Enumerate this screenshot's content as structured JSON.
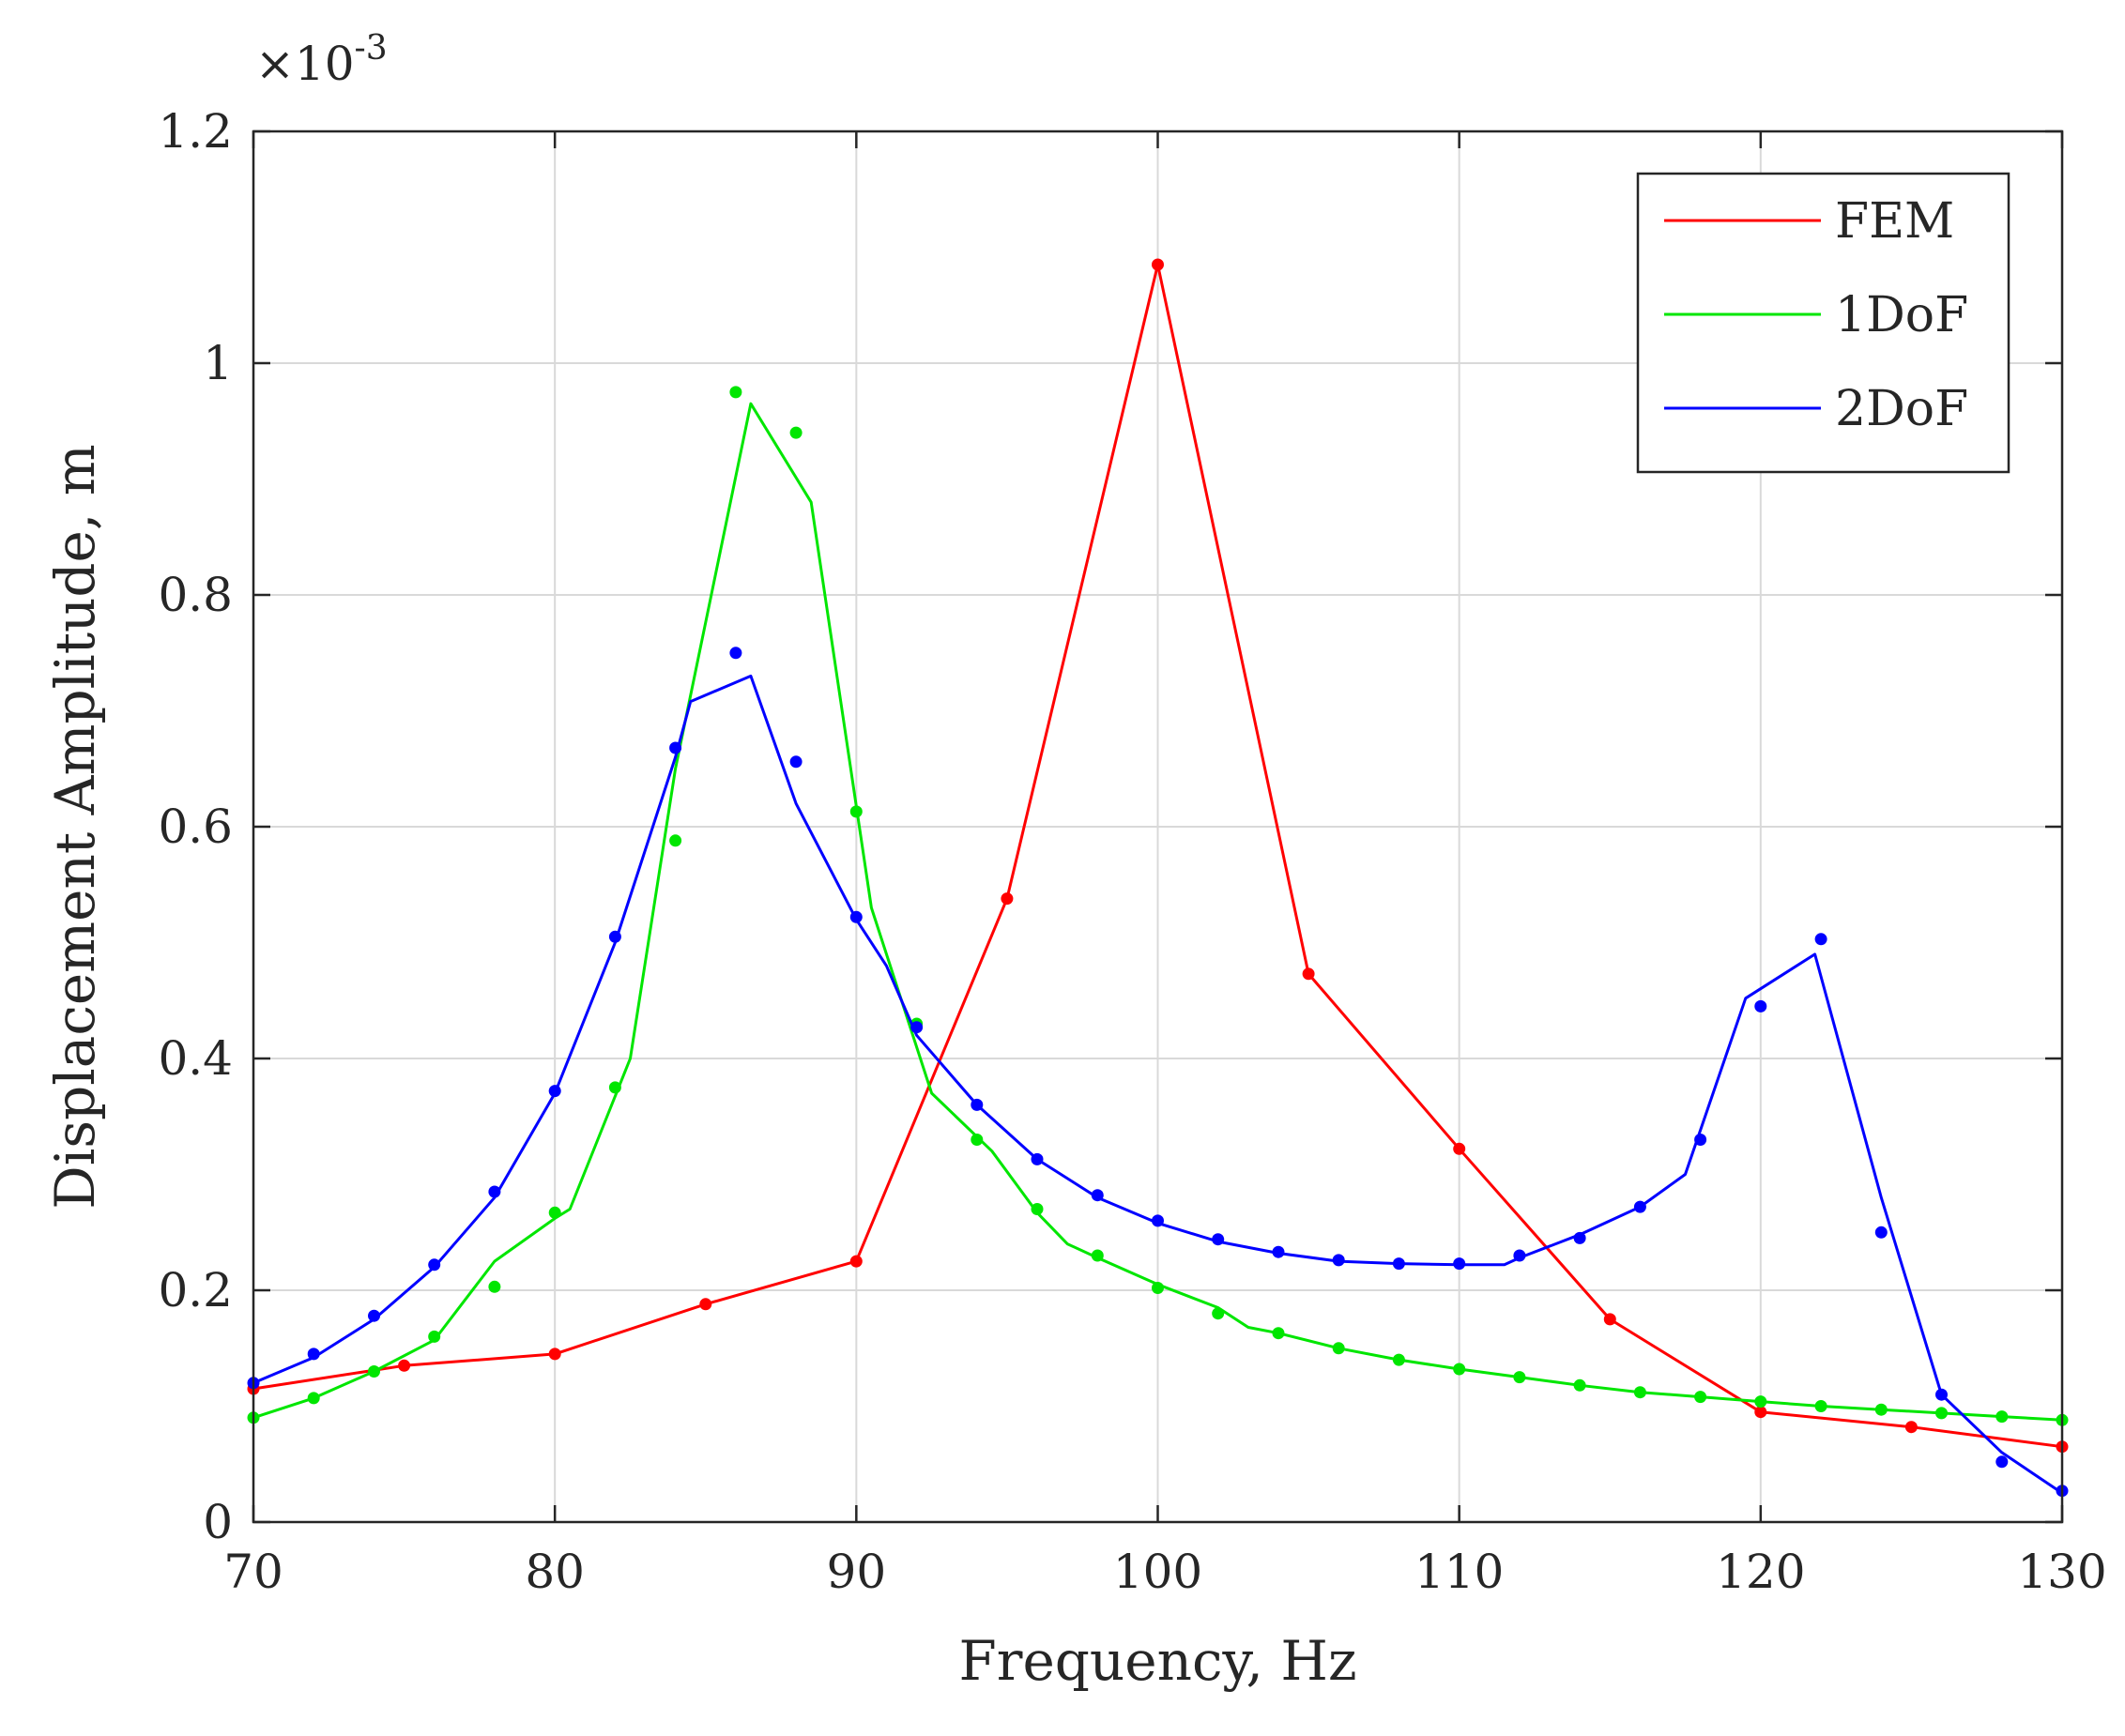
{
  "chart_data": {
    "type": "line",
    "title": "",
    "xlabel": "Frequency, Hz",
    "ylabel": "Displacement Amplitude, m",
    "xlim": [
      70,
      130
    ],
    "ylim": [
      0,
      1.2
    ],
    "y_exponent_label": "×10",
    "y_exponent_power": "-3",
    "xticks": [
      70,
      80,
      90,
      100,
      110,
      120,
      130
    ],
    "xtick_labels": [
      "70",
      "80",
      "90",
      "100",
      "110",
      "120",
      "130"
    ],
    "yticks": [
      0,
      0.2,
      0.4,
      0.6,
      0.8,
      1,
      1.2
    ],
    "ytick_labels": [
      "0",
      "0.2",
      "0.4",
      "0.6",
      "0.8",
      "1",
      "1.2"
    ],
    "grid": true,
    "legend_position": "top-right",
    "series": [
      {
        "name": "FEM",
        "color": "#ff0000",
        "line": {
          "x": [
            70,
            75,
            80,
            85,
            90,
            95,
            100,
            105,
            110,
            115,
            120,
            125,
            130
          ],
          "y": [
            0.115,
            0.135,
            0.145,
            0.188,
            0.225,
            0.538,
            1.085,
            0.473,
            0.322,
            0.175,
            0.095,
            0.082,
            0.065
          ]
        },
        "markers": {
          "x": [
            70,
            75,
            80,
            85,
            90,
            95,
            100,
            105,
            110,
            115,
            120,
            125,
            130
          ],
          "y": [
            0.115,
            0.135,
            0.145,
            0.188,
            0.225,
            0.538,
            1.085,
            0.473,
            0.322,
            0.175,
            0.095,
            0.082,
            0.065
          ]
        }
      },
      {
        "name": "1DoF",
        "color": "#00e600",
        "line": {
          "x": [
            70,
            72,
            74,
            76,
            78,
            80,
            80.5,
            82.5,
            84,
            86.5,
            88.5,
            90.5,
            92.5,
            94.5,
            96,
            97,
            98,
            100,
            102,
            103,
            104,
            106,
            108,
            110,
            112,
            114,
            116,
            118,
            120,
            122,
            124,
            126,
            128,
            130
          ],
          "y": [
            0.09,
            0.107,
            0.13,
            0.157,
            0.225,
            0.262,
            0.27,
            0.4,
            0.65,
            0.965,
            0.88,
            0.53,
            0.37,
            0.32,
            0.267,
            0.24,
            0.228,
            0.205,
            0.185,
            0.168,
            0.163,
            0.15,
            0.14,
            0.132,
            0.125,
            0.118,
            0.112,
            0.108,
            0.104,
            0.1,
            0.097,
            0.094,
            0.091,
            0.088
          ]
        },
        "markers": {
          "x": [
            70,
            72,
            74,
            76,
            78,
            80,
            82,
            84,
            86,
            88,
            90,
            92,
            94,
            96,
            98,
            100,
            102,
            104,
            106,
            108,
            110,
            112,
            114,
            116,
            118,
            120,
            122,
            124,
            126,
            128,
            130
          ],
          "y": [
            0.09,
            0.107,
            0.13,
            0.16,
            0.203,
            0.267,
            0.375,
            0.588,
            0.975,
            0.94,
            0.613,
            0.43,
            0.33,
            0.27,
            0.23,
            0.202,
            0.18,
            0.163,
            0.15,
            0.14,
            0.132,
            0.125,
            0.118,
            0.112,
            0.108,
            0.104,
            0.1,
            0.097,
            0.094,
            0.091,
            0.088
          ]
        }
      },
      {
        "name": "2DoF",
        "color": "#0000ff",
        "line": {
          "x": [
            70,
            72,
            74,
            76,
            78,
            80,
            82,
            84,
            84.5,
            86.5,
            88,
            90,
            91,
            92,
            94,
            96,
            98,
            100,
            102,
            104,
            106,
            108,
            110,
            111.5,
            112,
            114,
            116,
            117.5,
            119.5,
            121.8,
            124,
            126,
            128,
            130
          ],
          "y": [
            0.12,
            0.142,
            0.175,
            0.22,
            0.28,
            0.37,
            0.5,
            0.66,
            0.708,
            0.73,
            0.62,
            0.52,
            0.48,
            0.42,
            0.36,
            0.313,
            0.28,
            0.258,
            0.242,
            0.232,
            0.225,
            0.223,
            0.222,
            0.222,
            0.228,
            0.248,
            0.272,
            0.3,
            0.452,
            0.49,
            0.28,
            0.11,
            0.06,
            0.025
          ]
        },
        "markers": {
          "x": [
            70,
            72,
            74,
            76,
            78,
            80,
            82,
            84,
            86,
            88,
            90,
            92,
            94,
            96,
            98,
            100,
            102,
            104,
            106,
            108,
            110,
            112,
            114,
            116,
            118,
            120,
            122,
            124,
            126,
            128,
            130
          ],
          "y": [
            0.12,
            0.145,
            0.178,
            0.222,
            0.285,
            0.372,
            0.505,
            0.668,
            0.75,
            0.656,
            0.522,
            0.427,
            0.36,
            0.313,
            0.282,
            0.26,
            0.244,
            0.233,
            0.226,
            0.223,
            0.223,
            0.23,
            0.245,
            0.272,
            0.33,
            0.445,
            0.503,
            0.25,
            0.11,
            0.052,
            0.027
          ]
        }
      }
    ]
  }
}
